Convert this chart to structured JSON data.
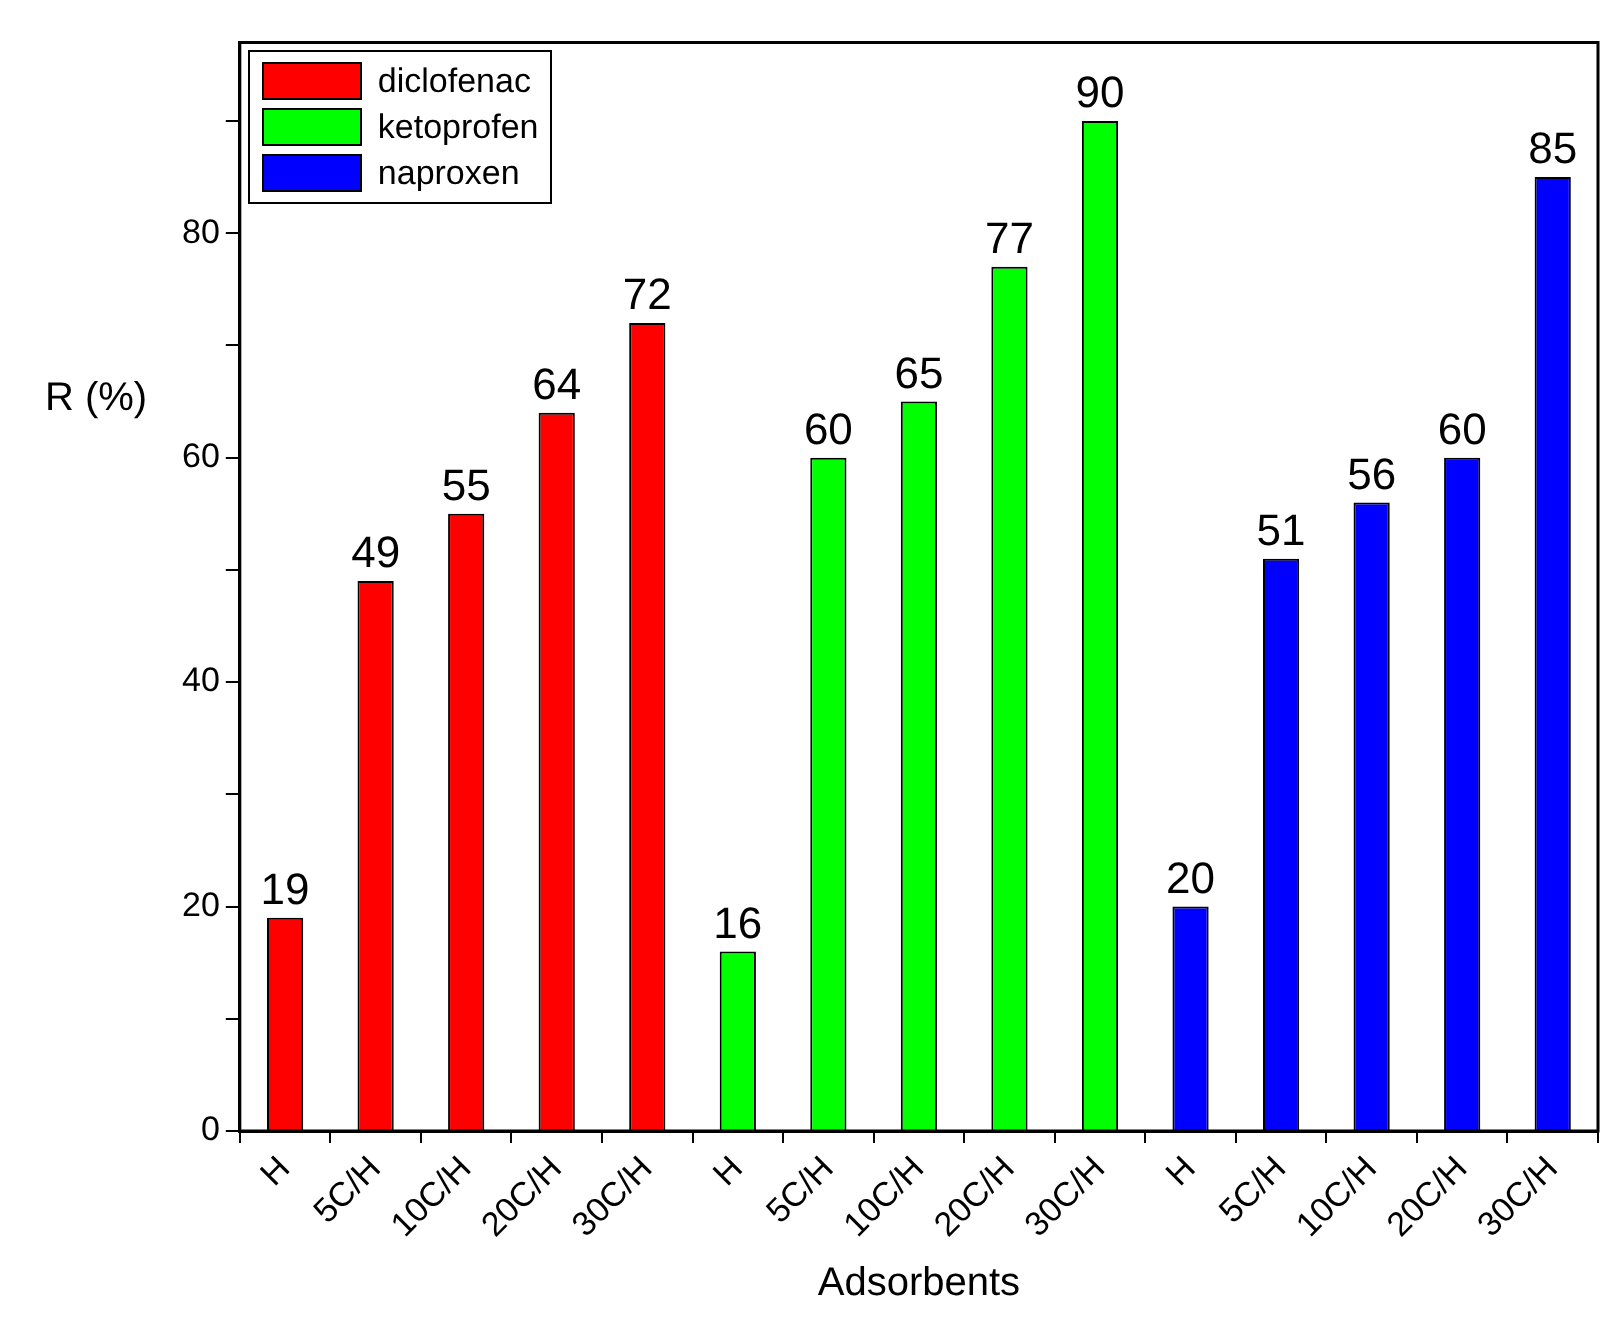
{
  "chart_data": {
    "type": "bar",
    "xlabel": "Adsorbents",
    "ylabel": "R (%)",
    "categories": [
      "H",
      "5C/H",
      "10C/H",
      "20C/H",
      "30C/H",
      "H",
      "5C/H",
      "10C/H",
      "20C/H",
      "30C/H",
      "H",
      "5C/H",
      "10C/H",
      "20C/H",
      "30C/H"
    ],
    "series": [
      {
        "name": "diclofenac",
        "color": "#ff0000",
        "values": [
          19,
          49,
          55,
          64,
          72,
          null,
          null,
          null,
          null,
          null,
          null,
          null,
          null,
          null,
          null
        ]
      },
      {
        "name": "ketoprofen",
        "color": "#00ff00",
        "values": [
          null,
          null,
          null,
          null,
          null,
          16,
          60,
          65,
          77,
          90,
          null,
          null,
          null,
          null,
          null
        ]
      },
      {
        "name": "naproxen",
        "color": "#0000ff",
        "values": [
          null,
          null,
          null,
          null,
          null,
          null,
          null,
          null,
          null,
          null,
          20,
          51,
          56,
          60,
          85
        ]
      }
    ],
    "ylim": [
      0,
      97
    ],
    "yticks": [
      0,
      {
        "value": 10,
        "label": null
      },
      20,
      {
        "value": 30,
        "label": null
      },
      40,
      {
        "value": 50,
        "label": null
      },
      60,
      {
        "value": 70,
        "label": null
      },
      80,
      {
        "value": 90,
        "label": null
      }
    ],
    "data_labels": true,
    "grid": false,
    "legend": "top left"
  }
}
